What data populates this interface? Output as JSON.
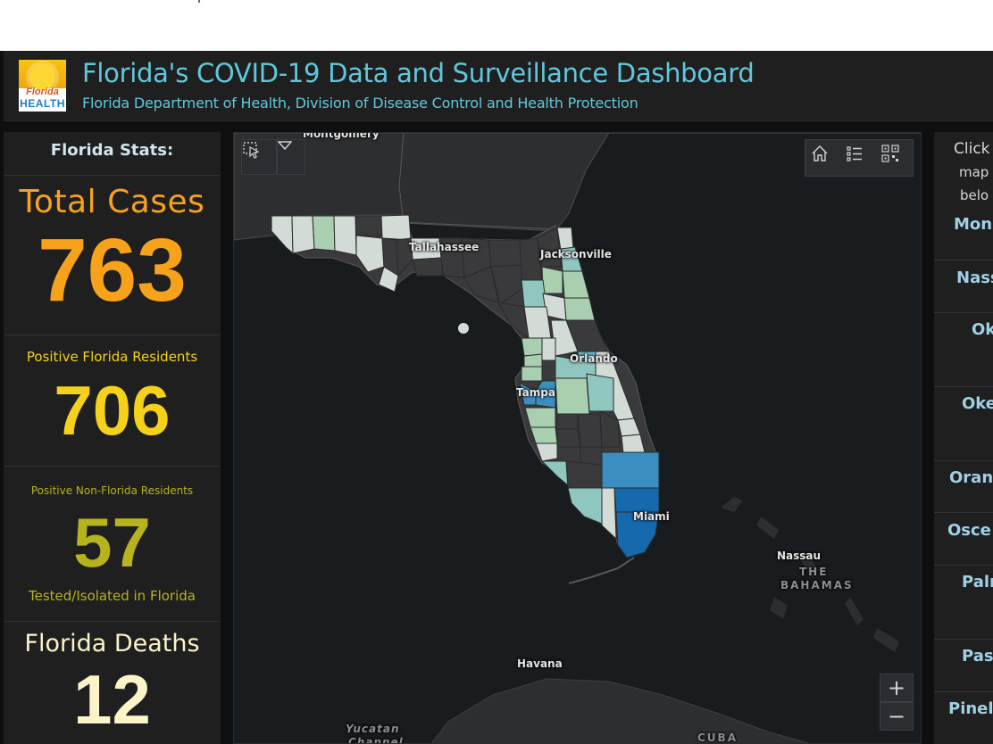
{
  "header": {
    "title": "Florida's COVID-19 Data and Surveillance Dashboard",
    "subtitle": "Florida Department of Health, Division of Disease Control and Health Protection",
    "logo": {
      "line1": "Florida",
      "line2": "HEALTH"
    }
  },
  "stats": {
    "heading": "Florida Stats:",
    "total_cases": {
      "label": "Total Cases",
      "value": "763",
      "color": "#f7a21b"
    },
    "residents": {
      "label": "Positive Florida Residents",
      "value": "706",
      "color": "#f5d11a"
    },
    "non_residents": {
      "label": "Positive Non-Florida Residents",
      "value": "57",
      "sub_label": "Tested/Isolated in Florida",
      "color": "#b7b31d"
    },
    "deaths": {
      "label": "Florida Deaths",
      "value": "12",
      "color": "#fbf4c8"
    }
  },
  "map": {
    "labels": {
      "montgomery": "Montgomery",
      "tallahassee": "Tallahassee",
      "jacksonville": "Jacksonville",
      "orlando": "Orlando",
      "tampa": "Tampa",
      "miami": "Miami",
      "nassau": "Nassau",
      "bahamas_line1": "THE",
      "bahamas_line2": "BAHAMAS",
      "havana": "Havana",
      "yucatan_line1": "Yucatan",
      "yucatan_line2": "Channel",
      "cuba": "CUBA"
    },
    "tools": {
      "select_icon": "select-icon",
      "dropdown_icon": "chevron-down-icon",
      "home_icon": "home-icon",
      "legend_icon": "legend-list-icon",
      "qr_icon": "qr-code-icon"
    },
    "zoom": {
      "in": "+",
      "out": "−"
    },
    "colors": {
      "none": "#3a3a3c",
      "low": "#d3dbd6",
      "mid1": "#a9cfb1",
      "mid2": "#8fc7c0",
      "mid3": "#6bb8c6",
      "high": "#3b8fc0",
      "very_high": "#1769ad",
      "water": "#191c1e",
      "land": "#2c2e30"
    }
  },
  "right_panel": {
    "intro": [
      "Click",
      "map",
      "belo"
    ],
    "items": [
      "Mon",
      "Nass",
      "Ok",
      "Oke",
      "Orang",
      "Osce",
      "Paln",
      "Pase",
      "Pinell"
    ]
  }
}
